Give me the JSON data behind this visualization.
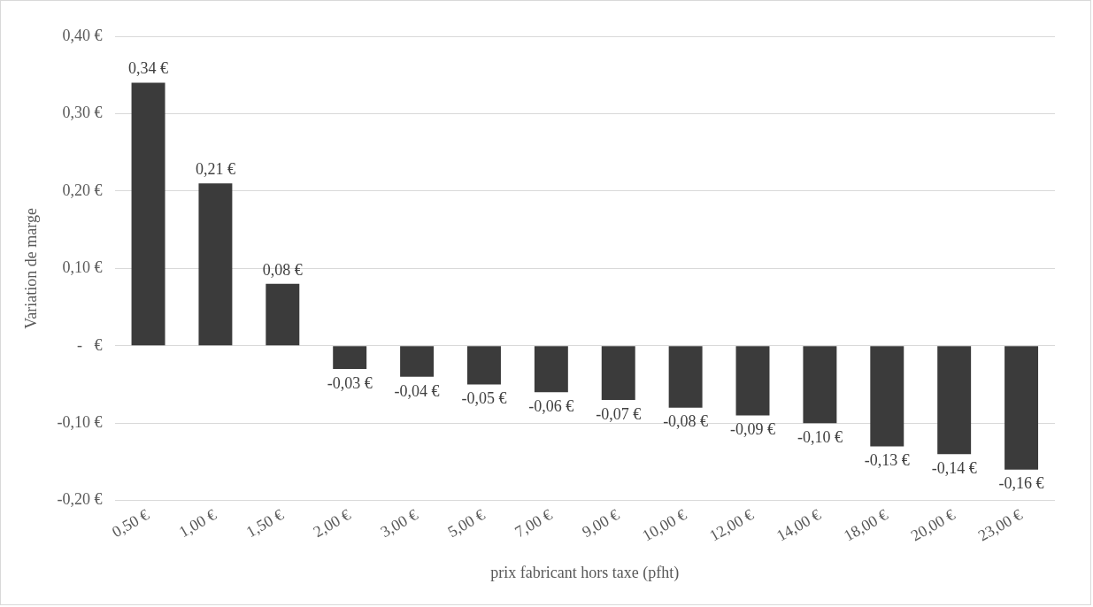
{
  "chart_data": {
    "type": "bar",
    "xlabel": "prix fabricant hors taxe (pfht)",
    "ylabel": "Variation de marge",
    "categories": [
      "0,50 €",
      "1,00 €",
      "1,50 €",
      "2,00 €",
      "3,00 €",
      "5,00 €",
      "7,00 €",
      "9,00 €",
      "10,00 €",
      "12,00 €",
      "14,00 €",
      "18,00 €",
      "20,00 €",
      "23,00 €"
    ],
    "values": [
      0.34,
      0.21,
      0.08,
      -0.03,
      -0.04,
      -0.05,
      -0.06,
      -0.07,
      -0.08,
      -0.09,
      -0.1,
      -0.13,
      -0.14,
      -0.16
    ],
    "value_labels": [
      "0,34 €",
      "0,21 €",
      "0,08 €",
      "-0,03 €",
      "-0,04 €",
      "-0,05 €",
      "-0,06 €",
      "-0,07 €",
      "-0,08 €",
      "-0,09 €",
      "-0,10 €",
      "-0,13 €",
      "-0,14 €",
      "-0,16 €"
    ],
    "color": "#3b3b3b",
    "ylim": [
      -0.2,
      0.4
    ],
    "yticks": [
      {
        "value": -0.2,
        "label": "-0,20 €"
      },
      {
        "value": -0.1,
        "label": "-0,10 €"
      },
      {
        "value": 0,
        "label": "-   €"
      },
      {
        "value": 0.1,
        "label": "0,10 €"
      },
      {
        "value": 0.2,
        "label": "0,20 €"
      },
      {
        "value": 0.3,
        "label": "0,30 €"
      },
      {
        "value": 0.4,
        "label": "0,40 €"
      }
    ],
    "grid": "y",
    "legend": false
  }
}
